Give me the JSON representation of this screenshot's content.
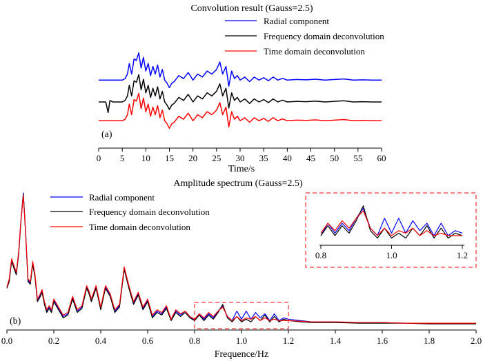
{
  "chart_data": [
    {
      "type": "line",
      "panel_label": "(a)",
      "title": "Convolution result (Gauss=2.5)",
      "xlabel": "Time/s",
      "ylabel": "",
      "xlim": [
        0,
        60
      ],
      "xticks": [
        0,
        5,
        10,
        15,
        20,
        25,
        30,
        35,
        40,
        45,
        50,
        55,
        60
      ],
      "legend": [
        "Radial component",
        "Frequency domain deconvolution",
        "Time domain deconvolution"
      ],
      "legend_position": "top-right",
      "series": [
        {
          "name": "Radial component",
          "color": "#0000ff",
          "offset": 0.72,
          "x": [
            0,
            4,
            5,
            5.6,
            6.1,
            6.5,
            7,
            7.5,
            8,
            8.5,
            9,
            9.5,
            10,
            10.5,
            11,
            11.5,
            12,
            12.5,
            13,
            13.5,
            14,
            14.5,
            15,
            15.5,
            16,
            17,
            18,
            19,
            20,
            21,
            22,
            23,
            24,
            25,
            25.7,
            26.3,
            27,
            27.6,
            28.2,
            28.8,
            29.4,
            30,
            31,
            32,
            33,
            34,
            35,
            36,
            37,
            38,
            39,
            40,
            42,
            44,
            46,
            48,
            50,
            52,
            54,
            56,
            58,
            60
          ],
          "y": [
            0,
            0,
            0,
            0.05,
            0.2,
            0.55,
            0.2,
            0.7,
            0.65,
            0.9,
            0.4,
            0.75,
            0.3,
            0.55,
            0.15,
            0.45,
            0.2,
            0.5,
            0.1,
            0.35,
            0.0,
            -0.1,
            -0.25,
            -0.1,
            -0.05,
            0.15,
            0.05,
            0.25,
            0.0,
            0.2,
            0.1,
            0.3,
            0.2,
            0.35,
            0.6,
            0.2,
            0.45,
            -0.2,
            0.3,
            0.05,
            0.15,
            0.0,
            0.1,
            -0.05,
            0.1,
            0.0,
            0.08,
            -0.02,
            0.1,
            0.0,
            0.06,
            0.0,
            0.02,
            0.01,
            0.03,
            0.0,
            0.02,
            0.04,
            0.0,
            0.01,
            0.0,
            0.0
          ]
        },
        {
          "name": "Frequency domain deconvolution",
          "color": "#000000",
          "offset": 0.0,
          "x": [
            0,
            1.5,
            2,
            2.4,
            3,
            4,
            5,
            5.6,
            6.1,
            6.5,
            7,
            7.5,
            8,
            8.5,
            9,
            9.5,
            10,
            10.5,
            11,
            11.5,
            12,
            12.5,
            13,
            13.5,
            14,
            14.5,
            15,
            15.5,
            16,
            17,
            18,
            19,
            20,
            21,
            22,
            23,
            24,
            25,
            25.7,
            26.3,
            27,
            27.6,
            28.2,
            28.8,
            29.4,
            30,
            31,
            32,
            33,
            34,
            35,
            36,
            37,
            38,
            39,
            40,
            42,
            44,
            46,
            48,
            50,
            52,
            54,
            56,
            58,
            60
          ],
          "y": [
            0,
            0,
            -0.35,
            0.05,
            0,
            0,
            0,
            0.05,
            0.2,
            0.55,
            0.2,
            0.7,
            0.65,
            0.9,
            0.4,
            0.75,
            0.3,
            0.55,
            0.15,
            0.45,
            0.2,
            0.5,
            0.1,
            0.35,
            0.0,
            -0.1,
            -0.25,
            -0.1,
            -0.05,
            0.15,
            0.05,
            0.25,
            0.0,
            0.2,
            0.1,
            0.3,
            0.2,
            0.35,
            0.6,
            0.2,
            0.45,
            -0.2,
            0.3,
            0.05,
            0.15,
            0.0,
            0.1,
            -0.05,
            0.1,
            0.0,
            0.08,
            -0.02,
            0.1,
            0.0,
            0.06,
            0.0,
            0.02,
            0.01,
            0.03,
            0.0,
            0.02,
            0.04,
            0.0,
            0.01,
            0.0,
            0.0
          ]
        },
        {
          "name": "Time domain deconvolution",
          "color": "#ff0000",
          "offset": -0.62,
          "x": [
            0,
            4,
            5,
            5.6,
            6.1,
            6.5,
            7,
            7.5,
            8,
            8.5,
            9,
            9.5,
            10,
            10.5,
            11,
            11.5,
            12,
            12.5,
            13,
            13.5,
            14,
            14.5,
            15,
            15.5,
            16,
            17,
            18,
            19,
            20,
            21,
            22,
            23,
            24,
            25,
            25.7,
            26.3,
            27,
            27.6,
            28.2,
            28.8,
            29.4,
            30,
            31,
            32,
            33,
            34,
            35,
            36,
            37,
            38,
            39,
            40,
            42,
            44,
            46,
            48,
            50,
            52,
            54,
            56,
            58,
            60
          ],
          "y": [
            0,
            0,
            0,
            0.05,
            0.2,
            0.55,
            0.2,
            0.7,
            0.65,
            0.9,
            0.4,
            0.75,
            0.3,
            0.55,
            0.15,
            0.45,
            0.2,
            0.5,
            0.1,
            0.35,
            0.0,
            -0.1,
            -0.25,
            -0.1,
            -0.05,
            0.15,
            0.05,
            0.25,
            0.0,
            0.2,
            0.1,
            0.3,
            0.2,
            0.35,
            0.6,
            0.2,
            0.45,
            -0.2,
            0.3,
            0.05,
            0.15,
            0.0,
            0.1,
            -0.05,
            0.1,
            0.0,
            0.08,
            -0.02,
            0.1,
            0.0,
            0.06,
            0.0,
            0.02,
            0.01,
            0.03,
            0.0,
            0.02,
            0.04,
            0.0,
            0.01,
            0.0,
            0.0
          ]
        }
      ]
    },
    {
      "type": "line",
      "panel_label": "(b)",
      "title": "Amplitude spectrum (Gauss=2.5)",
      "xlabel": "Frequence/Hz",
      "ylabel": "",
      "xlim": [
        0,
        2.0
      ],
      "ylim": [
        0,
        1.0
      ],
      "xticks": [
        "0.0",
        "0.2",
        "0.4",
        "0.6",
        "0.8",
        "1.0",
        "1.2",
        "1.4",
        "1.6",
        "1.8",
        "2.0"
      ],
      "legend": [
        "Radial component",
        "Frequency domain deconvolution",
        "Time domain deconvolution"
      ],
      "legend_position": "top-left",
      "highlight_region": [
        0.8,
        1.2
      ],
      "inset": {
        "xlim": [
          0.8,
          1.2
        ],
        "xticks": [
          "0.8",
          "1.0",
          "1.2"
        ]
      },
      "series": [
        {
          "name": "Radial component",
          "color": "#0000ff",
          "x": [
            0,
            0.01,
            0.02,
            0.03,
            0.04,
            0.05,
            0.06,
            0.07,
            0.08,
            0.09,
            0.1,
            0.11,
            0.12,
            0.13,
            0.14,
            0.15,
            0.16,
            0.17,
            0.18,
            0.19,
            0.2,
            0.22,
            0.24,
            0.26,
            0.28,
            0.3,
            0.32,
            0.34,
            0.35,
            0.36,
            0.38,
            0.4,
            0.42,
            0.44,
            0.46,
            0.48,
            0.5,
            0.52,
            0.54,
            0.56,
            0.58,
            0.6,
            0.62,
            0.64,
            0.66,
            0.68,
            0.7,
            0.72,
            0.74,
            0.76,
            0.78,
            0.8,
            0.82,
            0.84,
            0.86,
            0.88,
            0.9,
            0.92,
            0.94,
            0.96,
            0.98,
            1.0,
            1.02,
            1.04,
            1.06,
            1.08,
            1.1,
            1.12,
            1.14,
            1.16,
            1.18,
            1.2,
            1.25,
            1.3,
            1.4,
            1.5,
            1.6,
            1.7,
            1.8,
            1.9,
            2.0
          ],
          "y": [
            0.3,
            0.35,
            0.5,
            0.45,
            0.4,
            0.55,
            0.8,
            1.0,
            0.7,
            0.35,
            0.33,
            0.48,
            0.38,
            0.2,
            0.23,
            0.27,
            0.18,
            0.12,
            0.15,
            0.12,
            0.2,
            0.14,
            0.08,
            0.1,
            0.22,
            0.12,
            0.15,
            0.3,
            0.26,
            0.2,
            0.3,
            0.14,
            0.3,
            0.24,
            0.12,
            0.16,
            0.44,
            0.3,
            0.18,
            0.25,
            0.14,
            0.2,
            0.08,
            0.12,
            0.1,
            0.15,
            0.05,
            0.12,
            0.09,
            0.12,
            0.08,
            0.05,
            0.1,
            0.06,
            0.1,
            0.07,
            0.12,
            0.16,
            0.08,
            0.05,
            0.12,
            0.06,
            0.12,
            0.06,
            0.11,
            0.07,
            0.1,
            0.05,
            0.1,
            0.05,
            0.07,
            0.06,
            0.05,
            0.04,
            0.04,
            0.035,
            0.035,
            0.03,
            0.03,
            0.03,
            0.03
          ]
        },
        {
          "name": "Frequency domain deconvolution",
          "color": "#000000",
          "x": [
            0,
            0.01,
            0.02,
            0.03,
            0.04,
            0.05,
            0.06,
            0.07,
            0.08,
            0.09,
            0.1,
            0.11,
            0.12,
            0.13,
            0.14,
            0.15,
            0.16,
            0.17,
            0.18,
            0.19,
            0.2,
            0.22,
            0.24,
            0.26,
            0.28,
            0.3,
            0.32,
            0.34,
            0.35,
            0.36,
            0.38,
            0.4,
            0.42,
            0.44,
            0.46,
            0.48,
            0.5,
            0.52,
            0.54,
            0.56,
            0.58,
            0.6,
            0.62,
            0.64,
            0.66,
            0.68,
            0.7,
            0.72,
            0.74,
            0.76,
            0.78,
            0.8,
            0.82,
            0.84,
            0.86,
            0.88,
            0.9,
            0.92,
            0.94,
            0.96,
            0.98,
            1.0,
            1.02,
            1.04,
            1.06,
            1.08,
            1.1,
            1.12,
            1.14,
            1.16,
            1.18,
            1.2,
            1.25,
            1.3,
            1.4,
            1.5,
            1.6,
            1.7,
            1.8,
            1.9,
            2.0
          ],
          "y": [
            0.29,
            0.34,
            0.49,
            0.44,
            0.39,
            0.54,
            0.79,
            0.99,
            0.69,
            0.34,
            0.32,
            0.47,
            0.37,
            0.19,
            0.22,
            0.26,
            0.17,
            0.11,
            0.14,
            0.11,
            0.19,
            0.13,
            0.07,
            0.09,
            0.21,
            0.11,
            0.14,
            0.29,
            0.25,
            0.19,
            0.29,
            0.13,
            0.29,
            0.23,
            0.11,
            0.15,
            0.43,
            0.29,
            0.17,
            0.24,
            0.13,
            0.19,
            0.07,
            0.11,
            0.09,
            0.14,
            0.05,
            0.11,
            0.08,
            0.11,
            0.07,
            0.05,
            0.09,
            0.05,
            0.09,
            0.06,
            0.11,
            0.17,
            0.07,
            0.04,
            0.08,
            0.04,
            0.06,
            0.04,
            0.08,
            0.05,
            0.09,
            0.04,
            0.08,
            0.04,
            0.06,
            0.05,
            0.04,
            0.035,
            0.035,
            0.03,
            0.03,
            0.03,
            0.025,
            0.025,
            0.025
          ]
        },
        {
          "name": "Time domain deconvolution",
          "color": "#ff0000",
          "x": [
            0,
            0.01,
            0.02,
            0.03,
            0.04,
            0.05,
            0.06,
            0.07,
            0.08,
            0.09,
            0.1,
            0.11,
            0.12,
            0.13,
            0.14,
            0.15,
            0.16,
            0.17,
            0.18,
            0.19,
            0.2,
            0.22,
            0.24,
            0.26,
            0.28,
            0.3,
            0.32,
            0.34,
            0.35,
            0.36,
            0.38,
            0.4,
            0.42,
            0.44,
            0.46,
            0.48,
            0.5,
            0.52,
            0.54,
            0.56,
            0.58,
            0.6,
            0.62,
            0.64,
            0.66,
            0.68,
            0.7,
            0.72,
            0.74,
            0.76,
            0.78,
            0.8,
            0.82,
            0.84,
            0.86,
            0.88,
            0.9,
            0.92,
            0.94,
            0.96,
            0.98,
            1.0,
            1.02,
            1.04,
            1.06,
            1.08,
            1.1,
            1.12,
            1.14,
            1.16,
            1.18,
            1.2,
            1.25,
            1.3,
            1.4,
            1.5,
            1.6,
            1.7,
            1.8,
            1.9,
            2.0
          ],
          "y": [
            0.3,
            0.36,
            0.51,
            0.46,
            0.41,
            0.56,
            0.8,
            0.98,
            0.7,
            0.36,
            0.34,
            0.49,
            0.39,
            0.21,
            0.24,
            0.28,
            0.19,
            0.13,
            0.16,
            0.13,
            0.21,
            0.15,
            0.09,
            0.11,
            0.23,
            0.13,
            0.16,
            0.31,
            0.27,
            0.21,
            0.31,
            0.15,
            0.31,
            0.25,
            0.13,
            0.17,
            0.45,
            0.31,
            0.19,
            0.26,
            0.15,
            0.21,
            0.09,
            0.13,
            0.11,
            0.16,
            0.06,
            0.13,
            0.1,
            0.12,
            0.08,
            0.06,
            0.1,
            0.07,
            0.11,
            0.08,
            0.12,
            0.15,
            0.08,
            0.05,
            0.08,
            0.05,
            0.07,
            0.06,
            0.08,
            0.05,
            0.07,
            0.05,
            0.06,
            0.05,
            0.05,
            0.05,
            0.045,
            0.04,
            0.04,
            0.035,
            0.035,
            0.03,
            0.03,
            0.03,
            0.03
          ]
        }
      ]
    }
  ]
}
